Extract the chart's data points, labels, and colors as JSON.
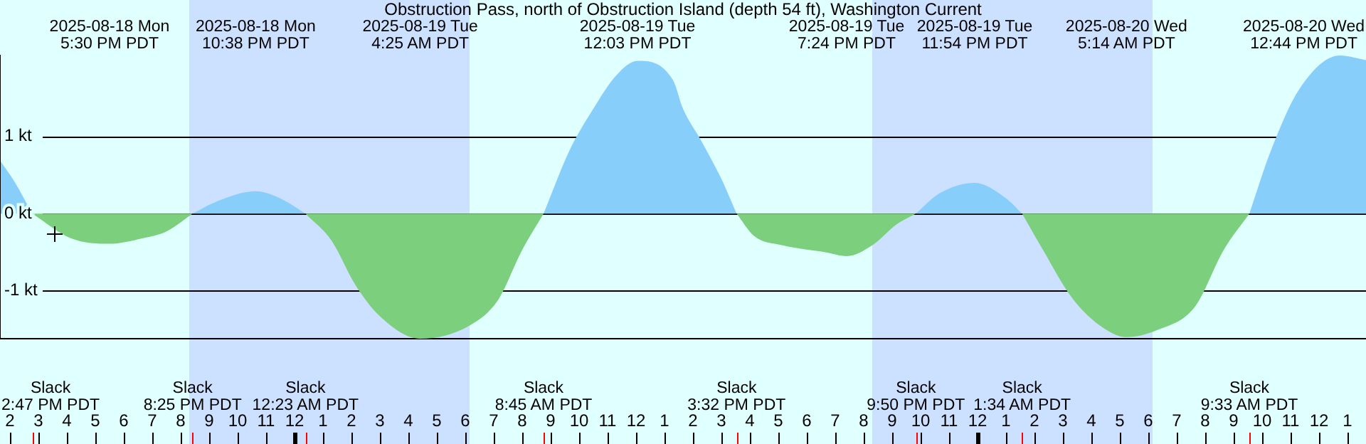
{
  "chart_data": {
    "type": "area",
    "title": "Obstruction Pass, north of Obstruction Island (depth 54 ft), Washington Current",
    "x": [
      "2025-08-18T13:39",
      "2025-08-18T14:09",
      "2025-08-18T14:47",
      "2025-08-18T16:09",
      "2025-08-18T17:30",
      "2025-08-18T18:39",
      "2025-08-18T19:30",
      "2025-08-18T20:25",
      "2025-08-18T21:09",
      "2025-08-18T22:38",
      "2025-08-18T23:39",
      "2025-08-19T00:23",
      "2025-08-19T01:18",
      "2025-08-19T02:09",
      "2025-08-19T03:00",
      "2025-08-19T04:25",
      "2025-08-19T06:09",
      "2025-08-19T07:09",
      "2025-08-19T08:00",
      "2025-08-19T08:45",
      "2025-08-19T09:39",
      "2025-08-19T10:30",
      "2025-08-19T11:18",
      "2025-08-19T12:03",
      "2025-08-19T13:18",
      "2025-08-19T13:39",
      "2025-08-19T14:18",
      "2025-08-19T15:00",
      "2025-08-19T15:32",
      "2025-08-19T16:09",
      "2025-08-19T17:09",
      "2025-08-19T18:39",
      "2025-08-19T19:24",
      "2025-08-19T20:18",
      "2025-08-19T21:09",
      "2025-08-19T21:50",
      "2025-08-19T22:39",
      "2025-08-19T23:54",
      "2025-08-20T01:00",
      "2025-08-20T01:34",
      "2025-08-20T02:18",
      "2025-08-20T03:18",
      "2025-08-20T04:18",
      "2025-08-20T05:14",
      "2025-08-20T06:18",
      "2025-08-20T07:39",
      "2025-08-20T08:39",
      "2025-08-20T09:33",
      "2025-08-20T10:18",
      "2025-08-20T11:18",
      "2025-08-20T12:44",
      "2025-08-20T13:39"
    ],
    "series": [
      {
        "color": "#87cefa",
        "values": [
          0.69,
          0.42,
          0,
          null,
          null,
          null,
          null,
          0,
          0.14,
          0.29,
          0.17,
          0,
          null,
          null,
          null,
          null,
          null,
          null,
          null,
          0,
          0.81,
          1.36,
          1.79,
          1.98,
          1.73,
          1.36,
          0.94,
          0.45,
          0,
          null,
          null,
          null,
          null,
          null,
          null,
          0,
          0.26,
          0.4,
          0.2,
          0,
          null,
          null,
          null,
          null,
          null,
          null,
          null,
          0,
          0.81,
          1.61,
          2.05,
          1.99
        ]
      },
      {
        "color": "#7ccf7c",
        "values": [
          null,
          null,
          0,
          -0.32,
          -0.39,
          -0.32,
          -0.23,
          0,
          null,
          null,
          null,
          0,
          -0.35,
          -0.93,
          -1.33,
          -1.62,
          -1.45,
          -1.12,
          -0.47,
          0,
          null,
          null,
          null,
          null,
          null,
          null,
          null,
          null,
          0,
          -0.29,
          -0.41,
          -0.5,
          -0.55,
          -0.41,
          -0.14,
          0,
          null,
          null,
          null,
          0,
          -0.47,
          -1.08,
          -1.45,
          -1.6,
          -1.51,
          -1.2,
          -0.47,
          0,
          null,
          null,
          null,
          null
        ]
      }
    ],
    "xticks": [
      {
        "value": "2025-08-18T14:00",
        "label": "2"
      },
      {
        "value": "2025-08-18T15:00",
        "label": "3"
      },
      {
        "value": "2025-08-18T16:00",
        "label": "4"
      },
      {
        "value": "2025-08-18T17:00",
        "label": "5"
      },
      {
        "value": "2025-08-18T18:00",
        "label": "6"
      },
      {
        "value": "2025-08-18T19:00",
        "label": "7"
      },
      {
        "value": "2025-08-18T20:00",
        "label": "8"
      },
      {
        "value": "2025-08-18T21:00",
        "label": "9"
      },
      {
        "value": "2025-08-18T22:00",
        "label": "10"
      },
      {
        "value": "2025-08-18T23:00",
        "label": "11"
      },
      {
        "value": "2025-08-19T00:00",
        "label": "12"
      },
      {
        "value": "2025-08-19T01:00",
        "label": "1"
      },
      {
        "value": "2025-08-19T02:00",
        "label": "2"
      },
      {
        "value": "2025-08-19T03:00",
        "label": "3"
      },
      {
        "value": "2025-08-19T04:00",
        "label": "4"
      },
      {
        "value": "2025-08-19T05:00",
        "label": "5"
      },
      {
        "value": "2025-08-19T06:00",
        "label": "6"
      },
      {
        "value": "2025-08-19T07:00",
        "label": "7"
      },
      {
        "value": "2025-08-19T08:00",
        "label": "8"
      },
      {
        "value": "2025-08-19T09:00",
        "label": "9"
      },
      {
        "value": "2025-08-19T10:00",
        "label": "10"
      },
      {
        "value": "2025-08-19T11:00",
        "label": "11"
      },
      {
        "value": "2025-08-19T12:00",
        "label": "12"
      },
      {
        "value": "2025-08-19T13:00",
        "label": "1"
      },
      {
        "value": "2025-08-19T14:00",
        "label": "2"
      },
      {
        "value": "2025-08-19T15:00",
        "label": "3"
      },
      {
        "value": "2025-08-19T16:00",
        "label": "4"
      },
      {
        "value": "2025-08-19T17:00",
        "label": "5"
      },
      {
        "value": "2025-08-19T18:00",
        "label": "6"
      },
      {
        "value": "2025-08-19T19:00",
        "label": "7"
      },
      {
        "value": "2025-08-19T20:00",
        "label": "8"
      },
      {
        "value": "2025-08-19T21:00",
        "label": "9"
      },
      {
        "value": "2025-08-19T22:00",
        "label": "10"
      },
      {
        "value": "2025-08-19T23:00",
        "label": "11"
      },
      {
        "value": "2025-08-20T00:00",
        "label": "12"
      },
      {
        "value": "2025-08-20T01:00",
        "label": "1"
      },
      {
        "value": "2025-08-20T02:00",
        "label": "2"
      },
      {
        "value": "2025-08-20T03:00",
        "label": "3"
      },
      {
        "value": "2025-08-20T04:00",
        "label": "4"
      },
      {
        "value": "2025-08-20T05:00",
        "label": "5"
      },
      {
        "value": "2025-08-20T06:00",
        "label": "6"
      },
      {
        "value": "2025-08-20T07:00",
        "label": "7"
      },
      {
        "value": "2025-08-20T08:00",
        "label": "8"
      },
      {
        "value": "2025-08-20T09:00",
        "label": "9"
      },
      {
        "value": "2025-08-20T10:00",
        "label": "10"
      },
      {
        "value": "2025-08-20T11:00",
        "label": "11"
      },
      {
        "value": "2025-08-20T12:00",
        "label": "12"
      },
      {
        "value": "2025-08-20T13:00",
        "label": "1"
      }
    ],
    "xlim": [
      "2025-08-18T13:39",
      "2025-08-20T13:39"
    ],
    "ylim": [
      -1.62,
      2.05
    ],
    "yticks": [
      {
        "value": 1,
        "label": "1 kt"
      },
      {
        "value": 0,
        "label": "0 kt"
      },
      {
        "value": -1,
        "label": "-1 kt"
      }
    ],
    "grid": "y",
    "legend": false,
    "marker": "none",
    "bands": [
      {
        "axis": "x",
        "from": "2025-08-18T20:18",
        "to": "2025-08-19T06:09",
        "color": "#cce0ff"
      },
      {
        "axis": "x",
        "from": "2025-08-19T20:18",
        "to": "2025-08-20T06:09",
        "color": "#cce0ff"
      }
    ],
    "annotations": [
      "2025-08-18 Mon\n5:30 PM PDT",
      "2025-08-18 Mon\n10:38 PM PDT",
      "2025-08-19 Tue\n4:25 AM PDT",
      "2025-08-19 Tue\n12:03 PM PDT",
      "2025-08-19 Tue\n7:24 PM PDT",
      "2025-08-19 Tue\n11:54 PM PDT",
      "2025-08-20 Wed\n5:14 AM PDT",
      "2025-08-20 Wed\n12:44 PM PDT",
      "Slack\n2:47 PM PDT",
      "Slack\n8:25 PM PDT",
      "Slack\n12:23 AM PDT",
      "Slack\n8:45 AM PDT",
      "Slack\n3:32 PM PDT",
      "Slack\n9:50 PM PDT",
      "Slack\n1:34 AM PDT",
      "Slack\n9:33 AM PDT"
    ]
  }
}
